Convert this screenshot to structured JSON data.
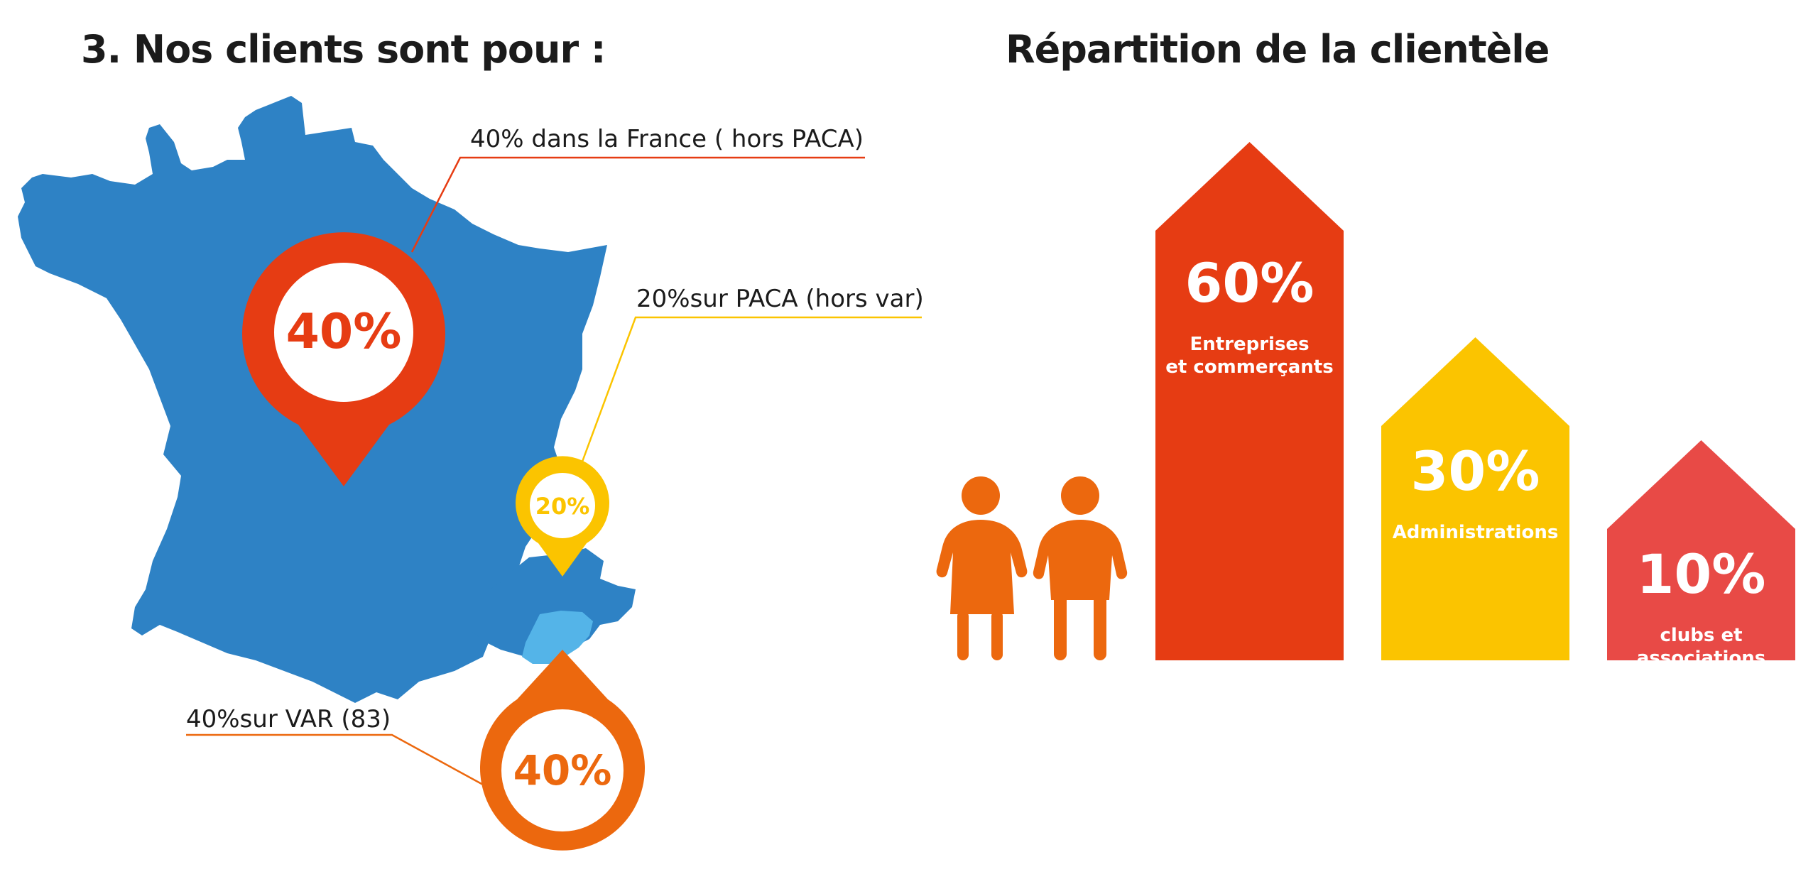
{
  "left": {
    "title": "3. Nos clients sont pour :",
    "callouts": {
      "france": "40% dans la France ( hors PACA)",
      "paca": "20%sur PACA (hors var)",
      "var": "40%sur VAR (83)"
    },
    "pins": {
      "france": "40%",
      "paca": "20%",
      "var": "40%"
    },
    "icons": {
      "map": "france-map-icon",
      "pin": "location-pin-icon"
    }
  },
  "right": {
    "title": "Répartition de la clientèle",
    "icons": {
      "people": "people-icon",
      "bar": "house-arrow-bar-icon"
    },
    "bars": [
      {
        "value": 60,
        "pct": "60%",
        "line1": "Entreprises",
        "line2": "et commerçants",
        "color": "#e63c13"
      },
      {
        "value": 30,
        "pct": "30%",
        "line1": "Administrations",
        "line2": "",
        "color": "#fbc400"
      },
      {
        "value": 10,
        "pct": "10%",
        "line1": "clubs et",
        "line2": "associations",
        "color": "#e84a46"
      }
    ]
  },
  "colors": {
    "map": "#2e82c5",
    "var_region": "#54b4e8",
    "france_pin": "#e63c13",
    "paca_pin": "#fbc400",
    "var_pin": "#ec680e",
    "people": "#ec680e",
    "france_line": "#e63c13",
    "paca_line": "#fbc400",
    "var_line": "#ec680e"
  }
}
